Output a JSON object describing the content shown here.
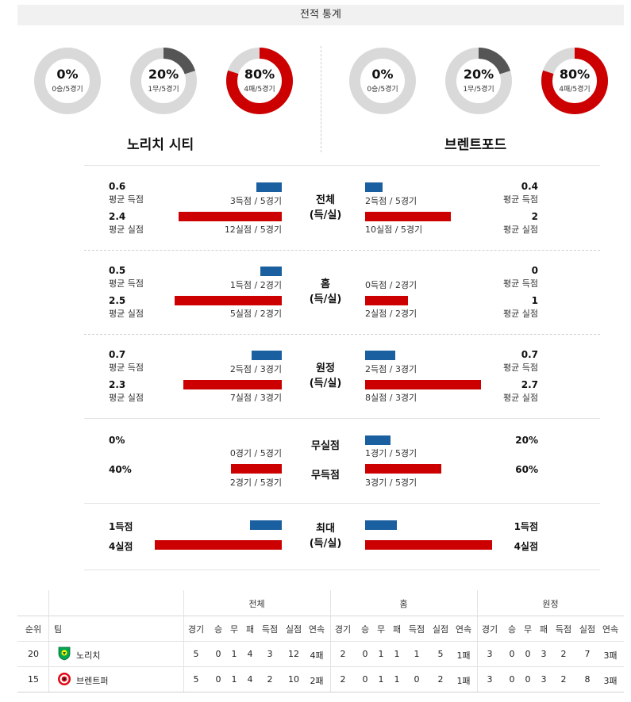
{
  "title": "전적 통계",
  "home_team": {
    "name": "노리치 시티",
    "donuts": [
      {
        "pct": "0%",
        "sub": "0승/5경기",
        "fraction": 0,
        "color": "#555555"
      },
      {
        "pct": "20%",
        "sub": "1무/5경기",
        "fraction": 0.2,
        "color": "#555555"
      },
      {
        "pct": "80%",
        "sub": "4패/5경기",
        "fraction": 0.8,
        "color": "#cc0000"
      }
    ]
  },
  "away_team": {
    "name": "브렌트포드",
    "donuts": [
      {
        "pct": "0%",
        "sub": "0승/5경기",
        "fraction": 0,
        "color": "#555555"
      },
      {
        "pct": "20%",
        "sub": "1무/5경기",
        "fraction": 0.2,
        "color": "#555555"
      },
      {
        "pct": "80%",
        "sub": "4패/5경기",
        "fraction": 0.8,
        "color": "#cc0000"
      }
    ]
  },
  "sections": [
    {
      "cat1": "전체",
      "cat2": "(득/실)",
      "left": {
        "scored_val": "0.6",
        "scored_lbl": "평균 득점",
        "scored_cnt": "3득점 / 5경기",
        "scored_frac": 0.6,
        "conceded_val": "2.4",
        "conceded_lbl": "평균 실점",
        "conceded_cnt": "12실점 / 5경기",
        "conceded_frac": 2.4
      },
      "right": {
        "scored_val": "0.4",
        "scored_lbl": "평균 득점",
        "scored_cnt": "2득점 / 5경기",
        "scored_frac": 0.4,
        "conceded_val": "2",
        "conceded_lbl": "평균 실점",
        "conceded_cnt": "10실점 / 5경기",
        "conceded_frac": 2.0
      }
    },
    {
      "cat1": "홈",
      "cat2": "(득/실)",
      "left": {
        "scored_val": "0.5",
        "scored_lbl": "평균 득점",
        "scored_cnt": "1득점 / 2경기",
        "scored_frac": 0.5,
        "conceded_val": "2.5",
        "conceded_lbl": "평균 실점",
        "conceded_cnt": "5실점 / 2경기",
        "conceded_frac": 2.5
      },
      "right": {
        "scored_val": "0",
        "scored_lbl": "평균 득점",
        "scored_cnt": "0득점 / 2경기",
        "scored_frac": 0,
        "conceded_val": "1",
        "conceded_lbl": "평균 실점",
        "conceded_cnt": "2실점 / 2경기",
        "conceded_frac": 1.0
      }
    },
    {
      "cat1": "원정",
      "cat2": "(득/실)",
      "left": {
        "scored_val": "0.7",
        "scored_lbl": "평균 득점",
        "scored_cnt": "2득점 / 3경기",
        "scored_frac": 0.7,
        "conceded_val": "2.3",
        "conceded_lbl": "평균 실점",
        "conceded_cnt": "7실점 / 3경기",
        "conceded_frac": 2.3
      },
      "right": {
        "scored_val": "0.7",
        "scored_lbl": "평균 득점",
        "scored_cnt": "2득점 / 3경기",
        "scored_frac": 0.7,
        "conceded_val": "2.7",
        "conceded_lbl": "평균 실점",
        "conceded_cnt": "8실점 / 3경기",
        "conceded_frac": 2.7
      }
    }
  ],
  "cleansheet": {
    "cat_a": "무실점",
    "cat_b": "무득점",
    "left": {
      "a_val": "0%",
      "a_cnt": "0경기 / 5경기",
      "a_frac": 0,
      "b_val": "40%",
      "b_cnt": "2경기 / 5경기",
      "b_frac": 0.4
    },
    "right": {
      "a_val": "20%",
      "a_cnt": "1경기 / 5경기",
      "a_frac": 0.2,
      "b_val": "60%",
      "b_cnt": "3경기 / 5경기",
      "b_frac": 0.6
    }
  },
  "max": {
    "cat1": "최대",
    "cat2": "(득/실)",
    "left": {
      "scored": "1득점",
      "scored_n": 1,
      "conceded": "4실점",
      "conceded_n": 4
    },
    "right": {
      "scored": "1득점",
      "scored_n": 1,
      "conceded": "4실점",
      "conceded_n": 4
    }
  },
  "table": {
    "group_headers": [
      "전체",
      "홈",
      "원정"
    ],
    "col_rank": "순위",
    "col_team": "팀",
    "sub_headers": [
      "경기",
      "승",
      "무",
      "패",
      "득점",
      "실점",
      "연속"
    ],
    "rows": [
      {
        "rank": "20",
        "team": "노리치",
        "logo": "norwich-logo",
        "total": [
          "5",
          "0",
          "1",
          "4",
          "3",
          "12",
          "4패"
        ],
        "home": [
          "2",
          "0",
          "1",
          "1",
          "1",
          "5",
          "1패"
        ],
        "away": [
          "3",
          "0",
          "0",
          "3",
          "2",
          "7",
          "3패"
        ]
      },
      {
        "rank": "15",
        "team": "브렌트퍼",
        "logo": "brentford-logo",
        "total": [
          "5",
          "0",
          "1",
          "4",
          "2",
          "10",
          "2패"
        ],
        "home": [
          "2",
          "0",
          "1",
          "1",
          "0",
          "2",
          "1패"
        ],
        "away": [
          "3",
          "0",
          "0",
          "3",
          "2",
          "8",
          "3패"
        ]
      }
    ]
  }
}
